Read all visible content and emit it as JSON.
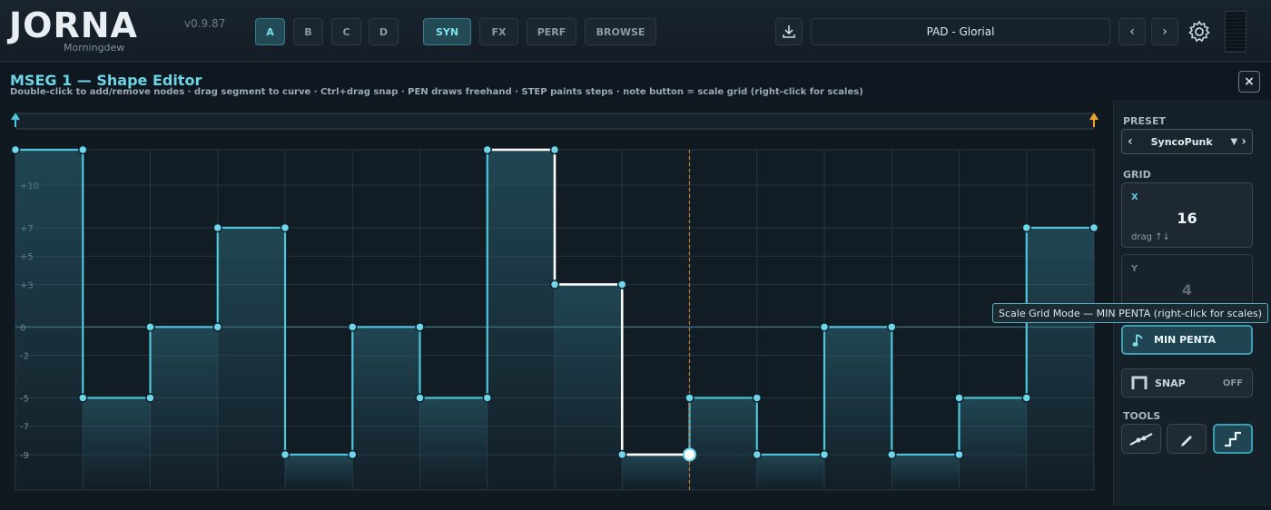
{
  "app": {
    "name": "JORNA",
    "subtitle": "Morningdew",
    "version": "v0.9.87"
  },
  "header": {
    "slots": [
      "A",
      "B",
      "C",
      "D"
    ],
    "active_slot": "A",
    "modes": [
      "SYN",
      "FX",
      "PERF",
      "BROWSE"
    ],
    "active_mode": "SYN",
    "preset_name": "PAD - Glorial",
    "icons": {
      "download": "download-icon",
      "prev": "chevron-left-icon",
      "next": "chevron-right-icon",
      "settings": "gear-icon"
    }
  },
  "panel": {
    "title": "MSEG 1 — Shape Editor",
    "instructions": "Double-click to add/remove nodes · drag segment to curve · Ctrl+drag snap · PEN draws freehand · STEP paints steps · note button = scale grid (right-click for scales)",
    "close_label": "×"
  },
  "sidebar": {
    "preset_label": "PRESET",
    "preset_value": "SyncoPunk",
    "grid_label": "GRID",
    "grid_x": {
      "axis": "X",
      "value": "16",
      "hint": "drag ↑↓"
    },
    "grid_y": {
      "axis": "Y",
      "value": "4"
    },
    "scale_mode_label": "MIN PENTA",
    "snap_label": "SNAP",
    "snap_state": "OFF",
    "tools_label": "TOOLS",
    "tools": [
      "curve-tool-icon",
      "pen-tool-icon",
      "step-tool-icon"
    ],
    "active_tool": "step-tool-icon"
  },
  "tooltip": "Scale Grid Mode — MIN PENTA  (right-click for scales)",
  "chart_data": {
    "type": "step",
    "y_tick_labels": [
      "+10",
      "+7",
      "+5",
      "+3",
      "0",
      "-2",
      "-5",
      "-7",
      "-9"
    ],
    "y_ticks": [
      10,
      7,
      5,
      3,
      0,
      -2,
      -5,
      -7,
      -9
    ],
    "ylim": [
      -11.5,
      12.5
    ],
    "x_divisions": 16,
    "grid": true,
    "playhead_x": 10,
    "nodes": [
      [
        0,
        12.5
      ],
      [
        1,
        12.5
      ],
      [
        1,
        -5
      ],
      [
        2,
        -5
      ],
      [
        2,
        0
      ],
      [
        3,
        0
      ],
      [
        3,
        7
      ],
      [
        4,
        7
      ],
      [
        4,
        -9
      ],
      [
        5,
        -9
      ],
      [
        5,
        0
      ],
      [
        6,
        0
      ],
      [
        6,
        -5
      ],
      [
        7,
        -5
      ],
      [
        7,
        12.5
      ],
      [
        8,
        12.5
      ],
      [
        8,
        3
      ],
      [
        9,
        3
      ],
      [
        9,
        -9
      ],
      [
        10,
        -9
      ],
      [
        10,
        -5
      ],
      [
        11,
        -5
      ],
      [
        11,
        -9
      ],
      [
        12,
        -9
      ],
      [
        12,
        0
      ],
      [
        13,
        0
      ],
      [
        13,
        -9
      ],
      [
        14,
        -9
      ],
      [
        14,
        -5
      ],
      [
        15,
        -5
      ],
      [
        15,
        7
      ],
      [
        16,
        7
      ]
    ],
    "highlight_segment": [
      7,
      10
    ],
    "colors": {
      "line": "#4fc6dc",
      "highlight": "#ffffff",
      "grid": "#26343f",
      "zero": "#3c6b79",
      "playhead": "#c8782a",
      "loop_start": "#4fc6dc",
      "loop_end": "#f0a030"
    }
  }
}
